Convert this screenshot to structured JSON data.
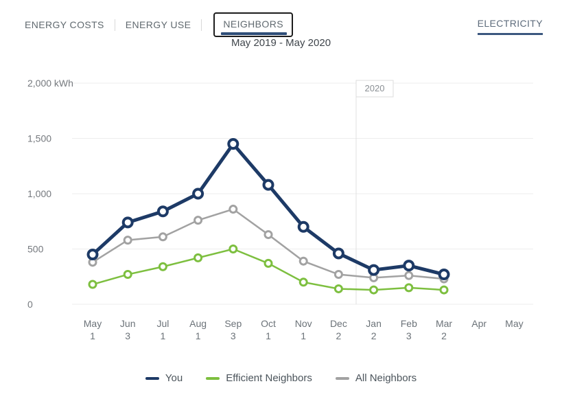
{
  "tabs": {
    "items": [
      {
        "label": "ENERGY COSTS",
        "active": false
      },
      {
        "label": "ENERGY USE",
        "active": false
      },
      {
        "label": "NEIGHBORS",
        "active": true
      }
    ]
  },
  "view_link": {
    "label": "ELECTRICITY"
  },
  "chart_data": {
    "type": "line",
    "title": "May 2019 - May 2020",
    "unit": "kWh",
    "ylim": [
      0,
      2000
    ],
    "yticks": [
      0,
      500,
      1000,
      1500,
      2000
    ],
    "ytick_labels": [
      "0",
      "500",
      "1,000",
      "1,500",
      "2,000 kWh"
    ],
    "grid": true,
    "legend_position": "bottom",
    "categories": [
      {
        "month": "May",
        "day": "1"
      },
      {
        "month": "Jun",
        "day": "3"
      },
      {
        "month": "Jul",
        "day": "1"
      },
      {
        "month": "Aug",
        "day": "1"
      },
      {
        "month": "Sep",
        "day": "3"
      },
      {
        "month": "Oct",
        "day": "1"
      },
      {
        "month": "Nov",
        "day": "1"
      },
      {
        "month": "Dec",
        "day": "2"
      },
      {
        "month": "Jan",
        "day": "2"
      },
      {
        "month": "Feb",
        "day": "3"
      },
      {
        "month": "Mar",
        "day": "2"
      },
      {
        "month": "Apr",
        "day": ""
      },
      {
        "month": "May",
        "day": ""
      }
    ],
    "year_divider": {
      "label": "2020",
      "between": [
        7,
        8
      ]
    },
    "series": [
      {
        "name": "You",
        "color": "#1d3a66",
        "emphasis": true,
        "values": [
          450,
          740,
          840,
          1000,
          1450,
          1080,
          700,
          460,
          310,
          350,
          270
        ]
      },
      {
        "name": "Efficient Neighbors",
        "color": "#7dbf3f",
        "emphasis": false,
        "values": [
          180,
          270,
          340,
          420,
          500,
          370,
          200,
          140,
          130,
          150,
          130
        ]
      },
      {
        "name": "All Neighbors",
        "color": "#a2a2a2",
        "emphasis": false,
        "values": [
          380,
          580,
          610,
          760,
          860,
          630,
          390,
          270,
          240,
          260,
          230
        ]
      }
    ],
    "colors": {
      "gridline": "#ededed",
      "year_divider_line": "#e0e0e0",
      "year_box_border": "#dcdcdc",
      "active_tab_indicator": "#2e4d78",
      "link_underline": "#3c577f"
    }
  }
}
